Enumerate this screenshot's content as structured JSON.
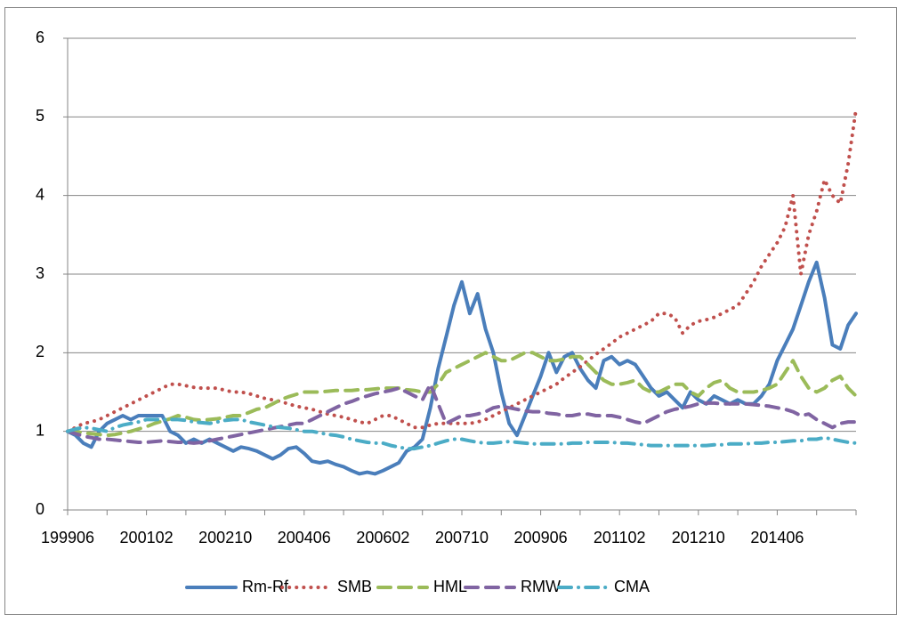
{
  "chart_data": {
    "type": "line",
    "categories": [
      "199906",
      null,
      null,
      null,
      null,
      null,
      null,
      null,
      null,
      null,
      "200102",
      null,
      null,
      null,
      null,
      null,
      null,
      null,
      null,
      null,
      "200210",
      null,
      null,
      null,
      null,
      null,
      null,
      null,
      null,
      null,
      "200406",
      null,
      null,
      null,
      null,
      null,
      null,
      null,
      null,
      null,
      "200602",
      null,
      null,
      null,
      null,
      null,
      null,
      null,
      null,
      null,
      "200710",
      null,
      null,
      null,
      null,
      null,
      null,
      null,
      null,
      null,
      "200906",
      null,
      null,
      null,
      null,
      null,
      null,
      null,
      null,
      null,
      "201102",
      null,
      null,
      null,
      null,
      null,
      null,
      null,
      null,
      null,
      "201210",
      null,
      null,
      null,
      null,
      null,
      null,
      null,
      null,
      null,
      "201406",
      null,
      null,
      null,
      null,
      null,
      null,
      null,
      null,
      null,
      null
    ],
    "ylim": [
      0,
      6
    ],
    "yticks": [
      0,
      1,
      2,
      3,
      4,
      5,
      6
    ],
    "grid": true,
    "legend": "bottom",
    "series": [
      {
        "name": "Rm-Rf",
        "color": "#4a7ebb",
        "style": "solid",
        "values": [
          1.0,
          0.95,
          0.85,
          0.8,
          1.0,
          1.1,
          1.15,
          1.2,
          1.15,
          1.2,
          1.2,
          1.2,
          1.2,
          1.0,
          0.95,
          0.85,
          0.9,
          0.85,
          0.9,
          0.85,
          0.8,
          0.75,
          0.8,
          0.78,
          0.75,
          0.7,
          0.65,
          0.7,
          0.78,
          0.8,
          0.72,
          0.62,
          0.6,
          0.62,
          0.58,
          0.55,
          0.5,
          0.46,
          0.48,
          0.46,
          0.5,
          0.55,
          0.6,
          0.75,
          0.8,
          0.9,
          1.3,
          1.8,
          2.2,
          2.6,
          2.9,
          2.5,
          2.75,
          2.3,
          2.0,
          1.5,
          1.1,
          0.95,
          1.2,
          1.45,
          1.7,
          2.0,
          1.75,
          1.95,
          2.0,
          1.8,
          1.65,
          1.55,
          1.9,
          1.95,
          1.85,
          1.9,
          1.85,
          1.7,
          1.55,
          1.45,
          1.5,
          1.4,
          1.3,
          1.5,
          1.4,
          1.35,
          1.45,
          1.4,
          1.35,
          1.4,
          1.35,
          1.35,
          1.45,
          1.6,
          1.9,
          2.1,
          2.3,
          2.6,
          2.9,
          3.15,
          2.7,
          2.1,
          2.05,
          2.35,
          2.5
        ]
      },
      {
        "name": "SMB",
        "color": "#c0504d",
        "style": "dot",
        "values": [
          1.0,
          1.05,
          1.1,
          1.12,
          1.15,
          1.2,
          1.25,
          1.3,
          1.35,
          1.4,
          1.45,
          1.5,
          1.55,
          1.6,
          1.6,
          1.58,
          1.56,
          1.55,
          1.55,
          1.55,
          1.52,
          1.5,
          1.5,
          1.48,
          1.45,
          1.42,
          1.4,
          1.38,
          1.35,
          1.32,
          1.3,
          1.28,
          1.25,
          1.22,
          1.2,
          1.18,
          1.15,
          1.12,
          1.1,
          1.15,
          1.2,
          1.2,
          1.15,
          1.1,
          1.05,
          1.05,
          1.08,
          1.1,
          1.1,
          1.1,
          1.1,
          1.1,
          1.12,
          1.15,
          1.2,
          1.25,
          1.3,
          1.35,
          1.4,
          1.45,
          1.5,
          1.55,
          1.6,
          1.68,
          1.75,
          1.82,
          1.9,
          1.98,
          2.05,
          2.12,
          2.2,
          2.25,
          2.3,
          2.35,
          2.4,
          2.5,
          2.5,
          2.45,
          2.25,
          2.35,
          2.4,
          2.42,
          2.45,
          2.5,
          2.55,
          2.6,
          2.75,
          2.9,
          3.1,
          3.25,
          3.4,
          3.6,
          4.0,
          3.0,
          3.5,
          3.8,
          4.2,
          4.0,
          3.9,
          4.4,
          5.1
        ]
      },
      {
        "name": "HML",
        "color": "#9bbb59",
        "style": "dash",
        "values": [
          1.0,
          1.0,
          0.98,
          0.97,
          0.96,
          0.95,
          0.96,
          0.98,
          1.0,
          1.03,
          1.06,
          1.1,
          1.13,
          1.16,
          1.2,
          1.18,
          1.15,
          1.14,
          1.15,
          1.16,
          1.18,
          1.2,
          1.2,
          1.24,
          1.28,
          1.3,
          1.35,
          1.4,
          1.44,
          1.47,
          1.5,
          1.5,
          1.5,
          1.51,
          1.52,
          1.52,
          1.52,
          1.53,
          1.53,
          1.54,
          1.55,
          1.55,
          1.55,
          1.53,
          1.52,
          1.5,
          1.5,
          1.6,
          1.75,
          1.8,
          1.85,
          1.9,
          1.95,
          2.0,
          1.95,
          1.9,
          1.9,
          1.95,
          2.0,
          2.0,
          1.95,
          1.9,
          1.9,
          1.92,
          1.95,
          1.95,
          1.85,
          1.75,
          1.65,
          1.6,
          1.6,
          1.62,
          1.65,
          1.55,
          1.5,
          1.5,
          1.55,
          1.6,
          1.6,
          1.5,
          1.45,
          1.55,
          1.62,
          1.65,
          1.55,
          1.5,
          1.5,
          1.5,
          1.52,
          1.55,
          1.6,
          1.75,
          1.9,
          1.7,
          1.55,
          1.5,
          1.55,
          1.65,
          1.7,
          1.55,
          1.45
        ]
      },
      {
        "name": "RMW",
        "color": "#8064a2",
        "style": "dash",
        "values": [
          1.0,
          0.97,
          0.94,
          0.92,
          0.9,
          0.9,
          0.89,
          0.88,
          0.87,
          0.86,
          0.86,
          0.87,
          0.88,
          0.87,
          0.86,
          0.86,
          0.85,
          0.86,
          0.88,
          0.9,
          0.92,
          0.94,
          0.96,
          0.98,
          1.0,
          1.02,
          1.04,
          1.06,
          1.08,
          1.1,
          1.1,
          1.15,
          1.2,
          1.25,
          1.3,
          1.35,
          1.38,
          1.42,
          1.45,
          1.48,
          1.5,
          1.52,
          1.55,
          1.5,
          1.45,
          1.4,
          1.6,
          1.35,
          1.1,
          1.15,
          1.2,
          1.2,
          1.22,
          1.25,
          1.3,
          1.32,
          1.3,
          1.28,
          1.26,
          1.25,
          1.25,
          1.23,
          1.22,
          1.2,
          1.2,
          1.22,
          1.22,
          1.2,
          1.2,
          1.2,
          1.18,
          1.15,
          1.12,
          1.1,
          1.15,
          1.2,
          1.25,
          1.28,
          1.3,
          1.32,
          1.35,
          1.36,
          1.36,
          1.35,
          1.35,
          1.35,
          1.35,
          1.34,
          1.33,
          1.32,
          1.3,
          1.28,
          1.25,
          1.2,
          1.22,
          1.15,
          1.1,
          1.05,
          1.1,
          1.12,
          1.12
        ]
      },
      {
        "name": "CMA",
        "color": "#4bacc6",
        "style": "dashdot",
        "values": [
          1.0,
          1.03,
          1.05,
          1.04,
          1.02,
          1.0,
          1.05,
          1.08,
          1.1,
          1.12,
          1.15,
          1.15,
          1.15,
          1.15,
          1.15,
          1.14,
          1.12,
          1.11,
          1.1,
          1.12,
          1.14,
          1.15,
          1.15,
          1.12,
          1.1,
          1.08,
          1.06,
          1.05,
          1.04,
          1.02,
          1.0,
          1.0,
          0.98,
          0.96,
          0.95,
          0.93,
          0.9,
          0.88,
          0.86,
          0.85,
          0.85,
          0.82,
          0.8,
          0.78,
          0.78,
          0.8,
          0.82,
          0.85,
          0.88,
          0.9,
          0.9,
          0.88,
          0.86,
          0.85,
          0.85,
          0.86,
          0.87,
          0.86,
          0.85,
          0.84,
          0.84,
          0.84,
          0.84,
          0.84,
          0.85,
          0.85,
          0.86,
          0.86,
          0.86,
          0.86,
          0.85,
          0.85,
          0.84,
          0.83,
          0.82,
          0.82,
          0.82,
          0.82,
          0.82,
          0.82,
          0.82,
          0.82,
          0.83,
          0.83,
          0.84,
          0.84,
          0.84,
          0.85,
          0.85,
          0.86,
          0.86,
          0.87,
          0.88,
          0.88,
          0.9,
          0.9,
          0.92,
          0.9,
          0.88,
          0.86,
          0.85
        ]
      }
    ]
  }
}
